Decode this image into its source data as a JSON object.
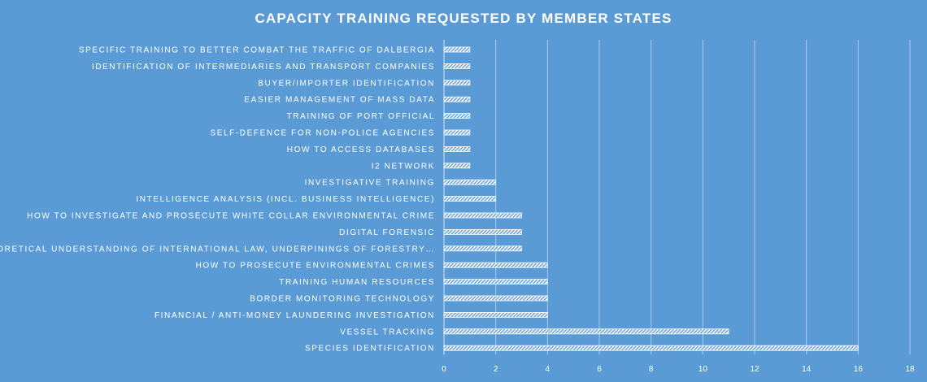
{
  "chart_data": {
    "type": "bar",
    "orientation": "horizontal",
    "title": "CAPACITY TRAINING REQUESTED BY MEMBER STATES",
    "xlabel": "",
    "ylabel": "",
    "xlim": [
      0,
      18
    ],
    "x_ticks": [
      0,
      2,
      4,
      6,
      8,
      10,
      12,
      14,
      16,
      18
    ],
    "grid": "vertical",
    "legend": "none",
    "bar_style": "white diagonal hatch",
    "colors": {
      "background": "#5b9bd5",
      "bar": "#ffffff",
      "text": "#ffffff",
      "grid": "#a9c9ea"
    },
    "categories": [
      "SPECIFIC TRAINING TO BETTER COMBAT THE TRAFFIC OF DALBERGIA",
      "IDENTIFICATION OF INTERMEDIARIES AND TRANSPORT COMPANIES",
      "BUYER/IMPORTER IDENTIFICATION",
      "EASIER MANAGEMENT OF MASS DATA",
      "TRAINING OF PORT OFFICIAL",
      "SELF-DEFENCE FOR NON-POLICE AGENCIES",
      "HOW TO ACCESS DATABASES",
      "I2 NETWORK",
      "INVESTIGATIVE TRAINING",
      "INTELLIGENCE ANALYSIS (INCL. BUSINESS INTELLIGENCE)",
      "HOW TO INVESTIGATE AND PROSECUTE WHITE COLLAR ENVIRONMENTAL CRIME",
      "DIGITAL FORENSIC",
      "THEORETICAL UNDERSTANDING OF INTERNATIONAL LAW, UNDERPININGS OF FORESTRY…",
      "HOW TO PROSECUTE ENVIRONMENTAL CRIMES",
      "TRAINING HUMAN RESOURCES",
      "BORDER MONITORING TECHNOLOGY",
      "FINANCIAL / ANTI-MONEY LAUNDERING  INVESTIGATION",
      "VESSEL TRACKING",
      "SPECIES IDENTIFICATION"
    ],
    "values": [
      1,
      1,
      1,
      1,
      1,
      1,
      1,
      1,
      2,
      2,
      3,
      3,
      3,
      4,
      4,
      4,
      4,
      11,
      16
    ]
  }
}
